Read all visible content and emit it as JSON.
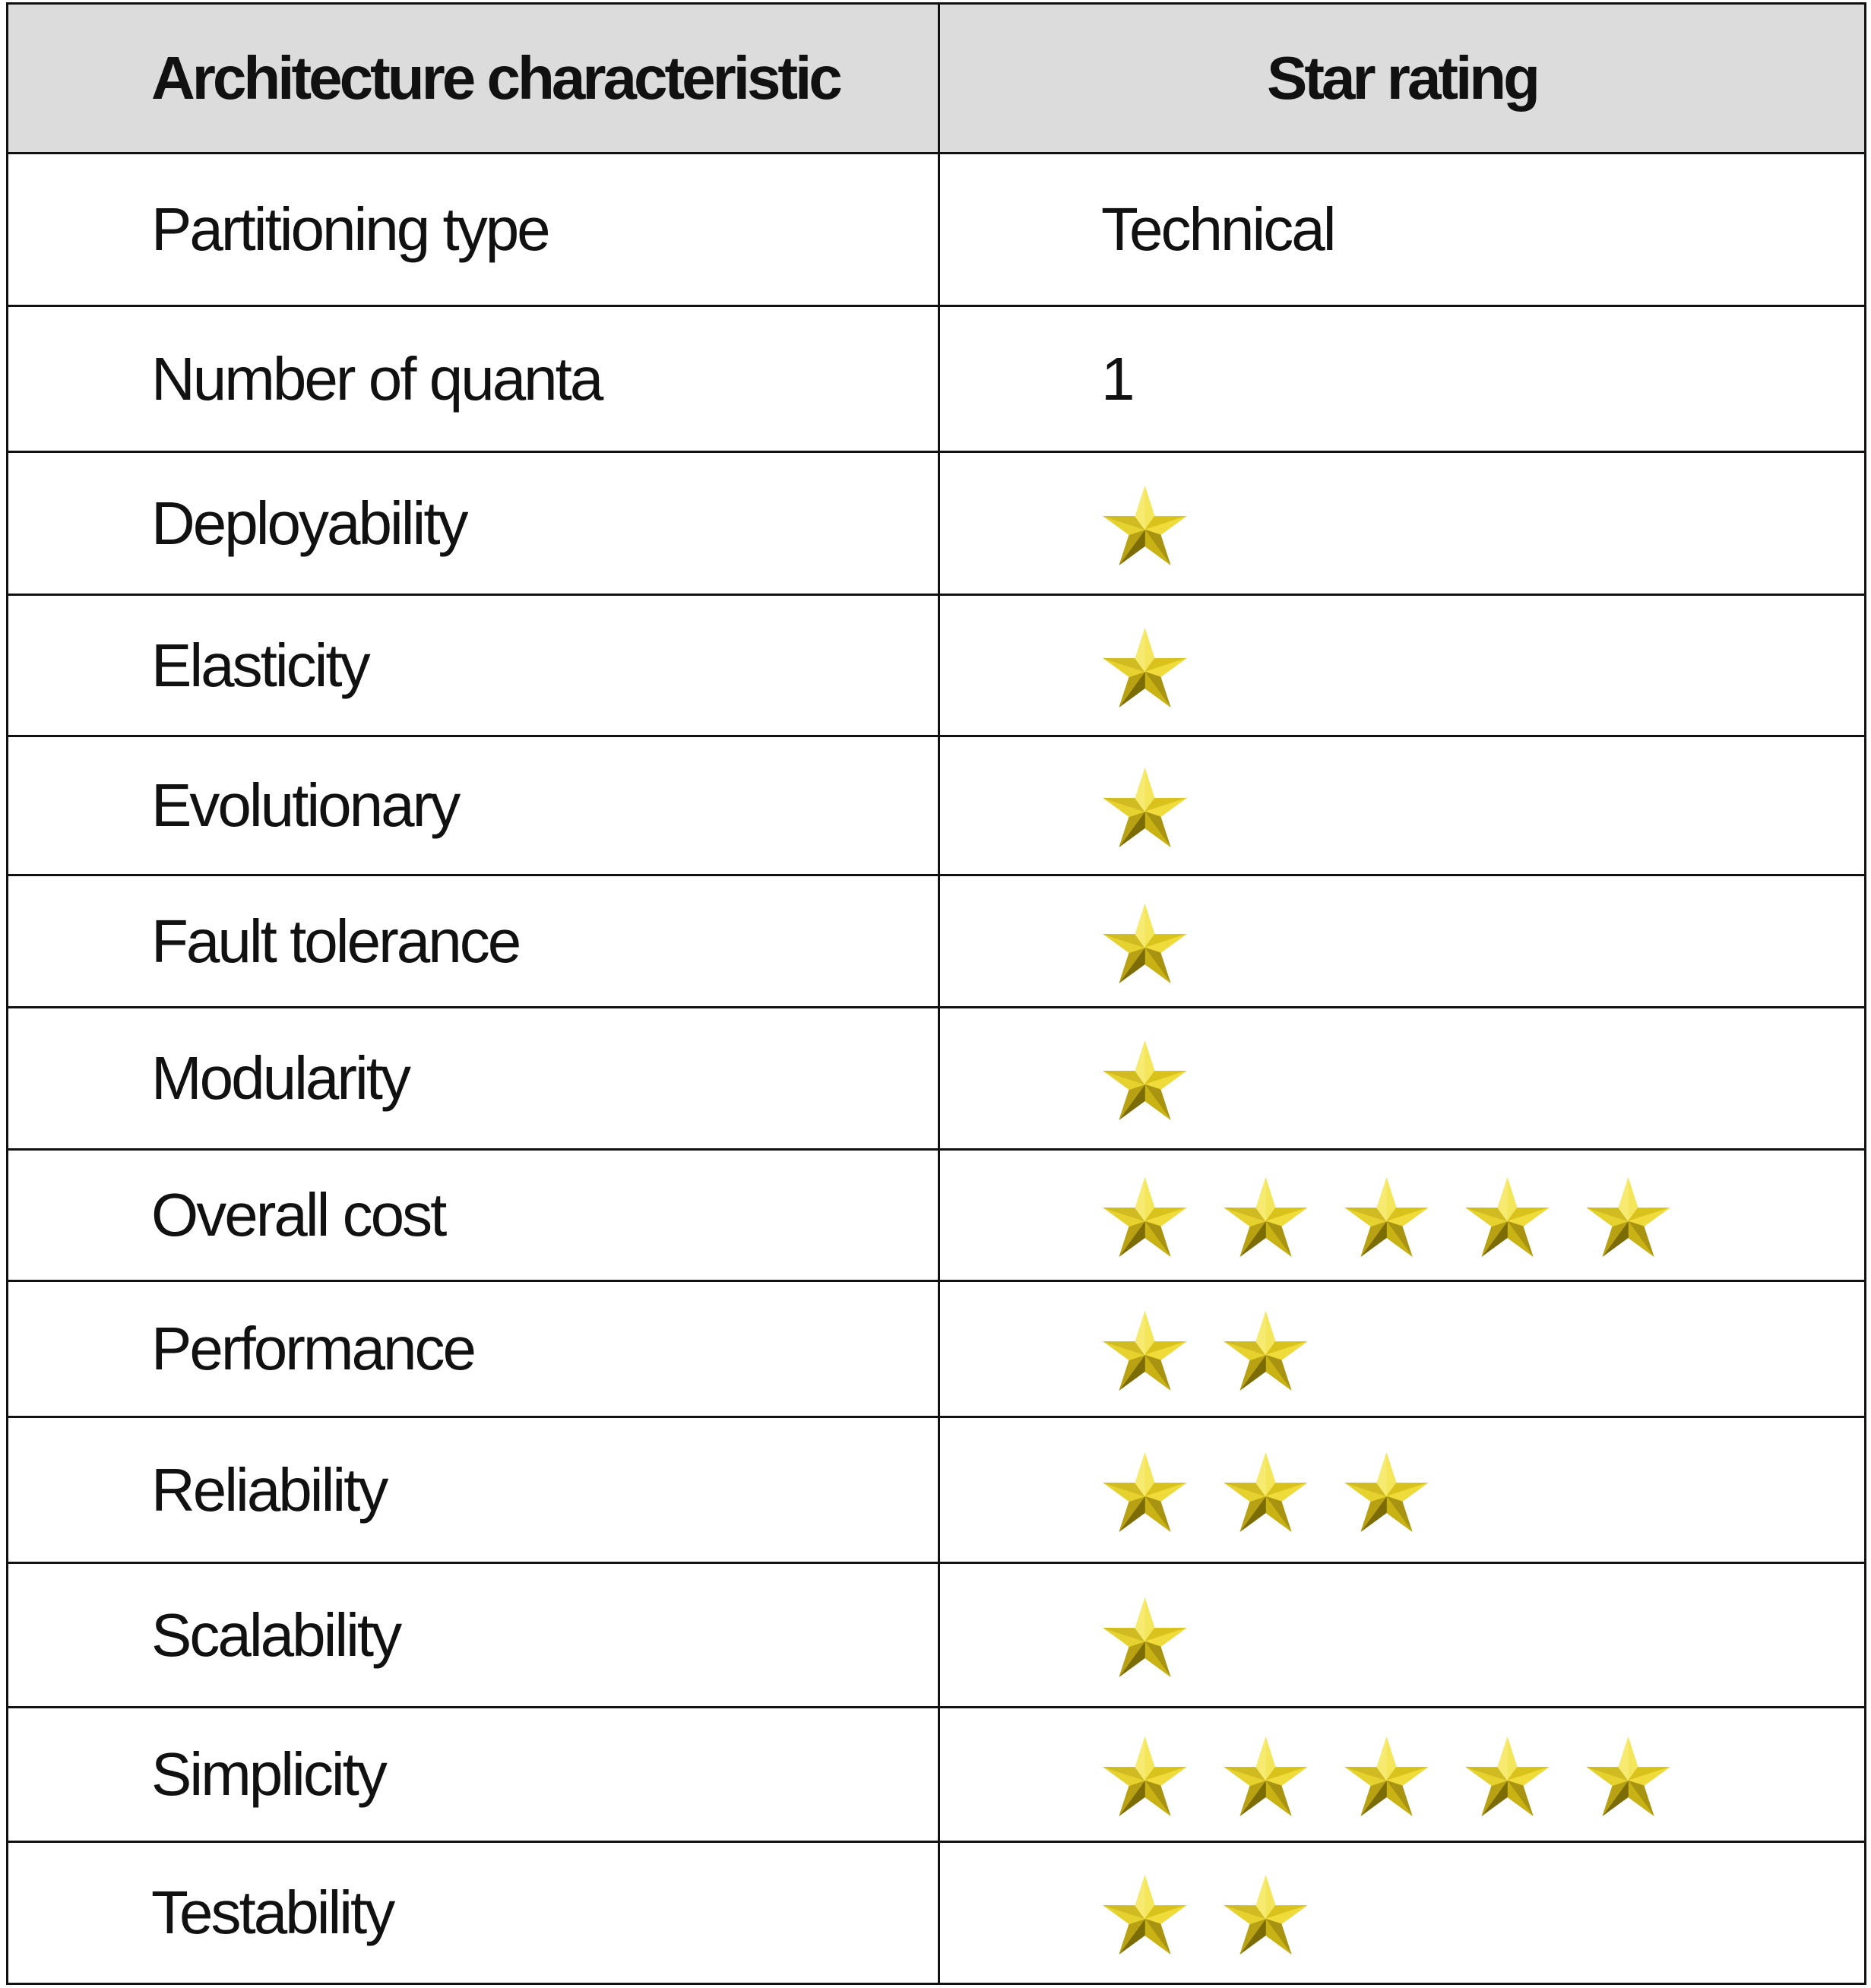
{
  "table": {
    "headers": [
      "Architecture characteristic",
      "Star rating"
    ],
    "rows": [
      {
        "characteristic": "Partitioning type",
        "value": "Technical"
      },
      {
        "characteristic": "Number of quanta",
        "value": "1"
      },
      {
        "characteristic": "Deployability",
        "stars": 1
      },
      {
        "characteristic": "Elasticity",
        "stars": 1
      },
      {
        "characteristic": "Evolutionary",
        "stars": 1
      },
      {
        "characteristic": "Fault tolerance",
        "stars": 1
      },
      {
        "characteristic": "Modularity",
        "stars": 1
      },
      {
        "characteristic": "Overall cost",
        "stars": 5
      },
      {
        "characteristic": "Performance",
        "stars": 2
      },
      {
        "characteristic": "Reliability",
        "stars": 3
      },
      {
        "characteristic": "Scalability",
        "stars": 1
      },
      {
        "characteristic": "Simplicity",
        "stars": 5
      },
      {
        "characteristic": "Testability",
        "stars": 2
      }
    ]
  },
  "colors": {
    "header_bg": "#dcdcdc",
    "star_light": "#f2e24a",
    "star_dark": "#8a7a08"
  }
}
